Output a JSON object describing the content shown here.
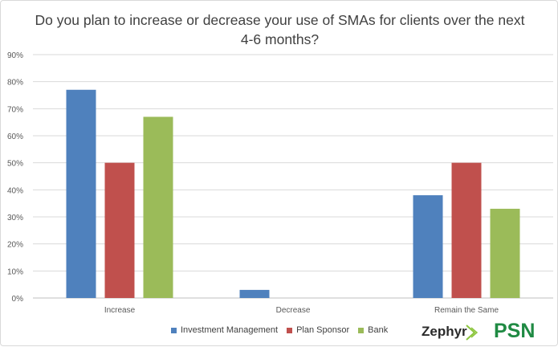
{
  "chart_data": {
    "type": "bar",
    "title": "Do you plan to increase or decrease your use of SMAs for clients over the next 4-6 months?",
    "categories": [
      "Increase",
      "Decrease",
      "Remain the Same"
    ],
    "series": [
      {
        "name": "Investment Management",
        "color": "#4f81bd",
        "values": [
          77,
          3,
          38
        ]
      },
      {
        "name": "Plan Sponsor",
        "color": "#c0504d",
        "values": [
          50,
          0,
          50
        ]
      },
      {
        "name": "Bank",
        "color": "#9bbb59",
        "values": [
          67,
          0,
          33
        ]
      }
    ],
    "ylim": [
      0,
      90
    ],
    "yticks": [
      0,
      10,
      20,
      30,
      40,
      50,
      60,
      70,
      80,
      90
    ],
    "ytick_labels": [
      "0%",
      "10%",
      "20%",
      "30%",
      "40%",
      "50%",
      "60%",
      "70%",
      "80%",
      "90%"
    ],
    "grid": true,
    "legend_position": "bottom"
  },
  "logos": {
    "zephyr": "Zephyr",
    "psn": "PSN"
  }
}
